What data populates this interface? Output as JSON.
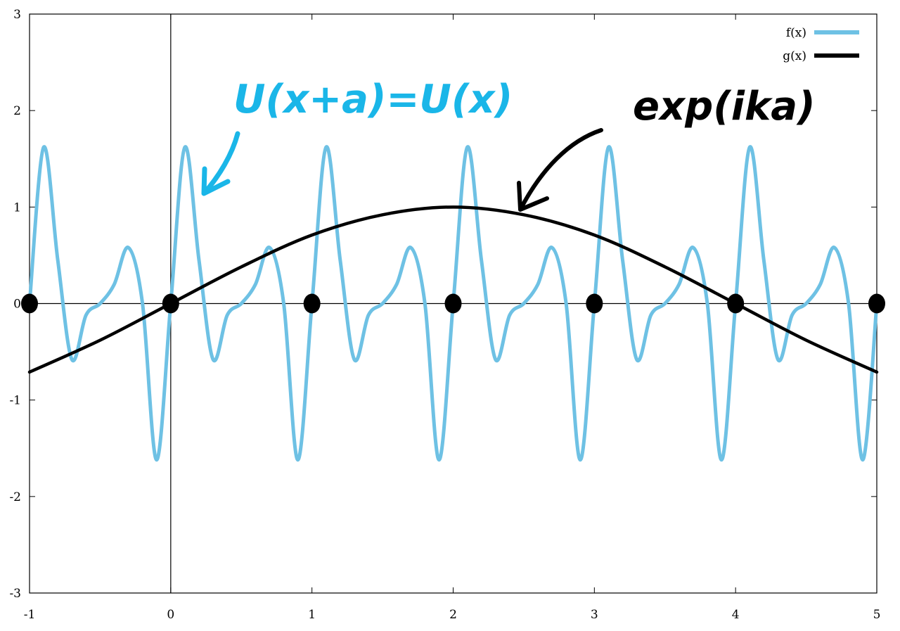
{
  "chart_data": {
    "type": "line",
    "title": "",
    "xlabel": "",
    "ylabel": "",
    "xlim": [
      -1,
      5
    ],
    "ylim": [
      -3,
      3
    ],
    "x_ticks": [
      "-1",
      "0",
      "1",
      "2",
      "3",
      "4",
      "5"
    ],
    "y_ticks": [
      "-3",
      "-2",
      "-1",
      "0",
      "1",
      "2",
      "3"
    ],
    "grid": false,
    "legend": "top-right",
    "series": [
      {
        "name": "f(x)",
        "color": "#6ec1e4",
        "x": [
          -1.0,
          -0.9,
          -0.8,
          -0.7,
          -0.6,
          -0.5,
          -0.4,
          -0.3,
          -0.2,
          -0.1,
          0.0
        ],
        "y": [
          0.0,
          1.62,
          0.45,
          -0.58,
          -0.12,
          0.0,
          0.2,
          0.58,
          0.0,
          -1.62,
          0.0
        ],
        "periodic_with_period": 1
      },
      {
        "name": "g(x)",
        "color": "#000000",
        "x": [
          -1.0,
          -0.5,
          0.0,
          0.5,
          1.0,
          1.5,
          2.0,
          2.5,
          3.0,
          3.5,
          4.0,
          4.5,
          5.0
        ],
        "y": [
          -0.71,
          -0.38,
          0.0,
          0.38,
          0.71,
          0.92,
          1.0,
          0.92,
          0.71,
          0.38,
          0.0,
          -0.38,
          -0.71
        ]
      }
    ],
    "points": {
      "x": [
        -1,
        0,
        1,
        2,
        3,
        4,
        5
      ],
      "y": [
        0,
        0,
        0,
        0,
        0,
        0,
        0
      ],
      "color": "#000000"
    },
    "annotations": [
      {
        "text": "U(x+a)=U(x)",
        "color": "#1ab6e8",
        "target": [
          0.1,
          1.2
        ]
      },
      {
        "text": "exp(ika)",
        "color": "#000000",
        "target": [
          2.45,
          0.98
        ]
      }
    ]
  }
}
